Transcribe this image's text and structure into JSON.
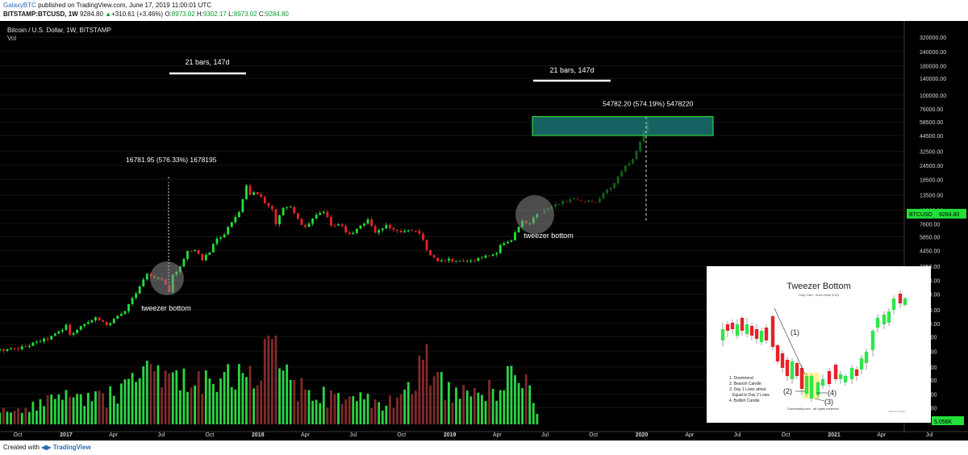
{
  "header": {
    "publisher": "GalaxyBTC",
    "published_text": "published on TradingView.com, June 17, 2019 11:00:01 UTC",
    "symbol": "BITSTAMP:BTCUSD, 1W",
    "last": "9284.80",
    "change_arrow": "▲",
    "change": "+310.61 (+3.46%)",
    "open_label": "O:",
    "open": "8973.02",
    "high_label": "H:",
    "high": "9302.17",
    "low_label": "L:",
    "low": "8973.02",
    "close_label": "C:",
    "close": "9284.80"
  },
  "chart_data": {
    "type": "candlestick",
    "title": "Bitcoin / U.S. Dollar, 1W, BITSTAMP",
    "volume_label": "Vol",
    "scale": "log",
    "ylim": [
      160,
      320000
    ],
    "price_ticks": [
      "320000.00",
      "240000.00",
      "180000.00",
      "140000.00",
      "100000.00",
      "76000.00",
      "58500.00",
      "44500.00",
      "32500.00",
      "24500.00",
      "18500.00",
      "13500.00",
      "10000.00",
      "7600.00",
      "5850.00",
      "4450.00",
      "3250.00",
      "2450.00",
      "1850.00",
      "1350.00",
      "1030.00",
      "790.00",
      "590.00",
      "430.00",
      "330.00",
      "250.00",
      "190.00"
    ],
    "x_ticks": [
      "Oct",
      "2017",
      "Apr",
      "Jul",
      "Oct",
      "2018",
      "Apr",
      "Jul",
      "Oct",
      "2019",
      "Apr",
      "Jul",
      "Oct",
      "2020",
      "Apr",
      "Jul",
      "Oct",
      "2021",
      "Apr",
      "Jul"
    ],
    "last_price_tag": "9284.80",
    "symbol_tag": "BTCUSD",
    "volume_tag": "5.058K",
    "close_series": [
      [
        "2016-08-07",
        590
      ],
      [
        "2016-09-04",
        605
      ],
      [
        "2016-10-02",
        615
      ],
      [
        "2016-10-30",
        690
      ],
      [
        "2016-11-27",
        760
      ],
      [
        "2016-12-25",
        900
      ],
      [
        "2017-01-01",
        998
      ],
      [
        "2017-01-08",
        810
      ],
      [
        "2017-01-22",
        920
      ],
      [
        "2017-02-05",
        1010
      ],
      [
        "2017-02-26",
        1180
      ],
      [
        "2017-03-19",
        980
      ],
      [
        "2017-04-02",
        1100
      ],
      [
        "2017-04-23",
        1320
      ],
      [
        "2017-05-07",
        1700
      ],
      [
        "2017-05-21",
        2200
      ],
      [
        "2017-06-04",
        2750
      ],
      [
        "2017-06-18",
        2600
      ],
      [
        "2017-07-02",
        2550
      ],
      [
        "2017-07-16",
        1920
      ],
      [
        "2017-07-23",
        2750
      ],
      [
        "2017-08-06",
        3200
      ],
      [
        "2017-08-20",
        4300
      ],
      [
        "2017-09-03",
        4500
      ],
      [
        "2017-09-17",
        3700
      ],
      [
        "2017-10-01",
        4350
      ],
      [
        "2017-10-15",
        5650
      ],
      [
        "2017-10-29",
        6150
      ],
      [
        "2017-11-12",
        7900
      ],
      [
        "2017-11-26",
        9800
      ],
      [
        "2017-12-10",
        16500
      ],
      [
        "2017-12-17",
        13800
      ],
      [
        "2017-12-31",
        14100
      ],
      [
        "2018-01-14",
        11300
      ],
      [
        "2018-01-28",
        10000
      ],
      [
        "2018-02-04",
        7500
      ],
      [
        "2018-02-18",
        10200
      ],
      [
        "2018-03-04",
        11000
      ],
      [
        "2018-03-18",
        8200
      ],
      [
        "2018-04-01",
        7000
      ],
      [
        "2018-04-22",
        8900
      ],
      [
        "2018-05-06",
        9500
      ],
      [
        "2018-05-20",
        7500
      ],
      [
        "2018-06-03",
        7600
      ],
      [
        "2018-06-24",
        6100
      ],
      [
        "2018-07-15",
        7300
      ],
      [
        "2018-07-29",
        8200
      ],
      [
        "2018-08-12",
        6300
      ],
      [
        "2018-09-02",
        7200
      ],
      [
        "2018-09-23",
        6600
      ],
      [
        "2018-10-14",
        6500
      ],
      [
        "2018-11-04",
        6400
      ],
      [
        "2018-11-18",
        4500
      ],
      [
        "2018-12-09",
        3500
      ],
      [
        "2018-12-30",
        3700
      ],
      [
        "2019-01-20",
        3550
      ],
      [
        "2019-02-10",
        3600
      ],
      [
        "2019-03-03",
        3850
      ],
      [
        "2019-03-31",
        4100
      ],
      [
        "2019-04-07",
        5100
      ],
      [
        "2019-04-28",
        5400
      ],
      [
        "2019-05-12",
        7300
      ],
      [
        "2019-05-19",
        8000
      ],
      [
        "2019-06-02",
        7700
      ],
      [
        "2019-06-16",
        9284.8
      ]
    ],
    "volume_series": [
      [
        "2016-08-07",
        0.3
      ],
      [
        "2016-10-02",
        0.3
      ],
      [
        "2016-12-25",
        0.5
      ],
      [
        "2017-01-08",
        0.5
      ],
      [
        "2017-03-19",
        0.5
      ],
      [
        "2017-04-23",
        0.7
      ],
      [
        "2017-05-21",
        0.75
      ],
      [
        "2017-06-04",
        0.95
      ],
      [
        "2017-07-16",
        0.8
      ],
      [
        "2017-09-03",
        0.8
      ],
      [
        "2017-09-17",
        0.95
      ],
      [
        "2017-11-12",
        0.9
      ],
      [
        "2017-12-10",
        1.0
      ],
      [
        "2017-12-31",
        0.95
      ],
      [
        "2018-02-04",
        1.55
      ],
      [
        "2018-03-04",
        0.7
      ],
      [
        "2018-05-06",
        0.55
      ],
      [
        "2018-07-15",
        0.5
      ],
      [
        "2018-09-23",
        0.4
      ],
      [
        "2018-11-18",
        1.2
      ],
      [
        "2018-12-09",
        0.8
      ],
      [
        "2019-02-10",
        0.5
      ],
      [
        "2019-04-07",
        0.75
      ],
      [
        "2019-05-12",
        1.0
      ],
      [
        "2019-06-16",
        0.3
      ]
    ],
    "annotations": [
      {
        "text": "21 bars, 147d",
        "kind": "range_bar"
      },
      {
        "text": "21 bars, 147d",
        "kind": "range_bar"
      },
      {
        "text": "16781.95 (576.33%) 1678195",
        "kind": "measure"
      },
      {
        "text": "54782.20 (574.19%) 5478220",
        "kind": "measure"
      },
      {
        "text": "tweezer bottom",
        "kind": "circle_label"
      },
      {
        "text": "tweezer bottom",
        "kind": "circle_label"
      }
    ],
    "target_zone": [
      44500,
      65000
    ]
  },
  "inset": {
    "title": "Tweezer Bottom",
    "subtitle": "Daily Chart - Green Metal (ICM)",
    "label_1": "(1)",
    "label_2": "(2)",
    "label_3": "(3)",
    "label_4": "(4)",
    "legend": [
      "1. Downtrend",
      "2. Bearish Candle",
      "3. Day 1 Lows about",
      "Equal to Day 2 Lows",
      "4. Bullish Candle"
    ],
    "credit": "Commodity.com - all rights reserved",
    "watermark": "Tweezer bottom"
  },
  "footer": {
    "created_with": "Created with",
    "brand": "TradingView"
  }
}
